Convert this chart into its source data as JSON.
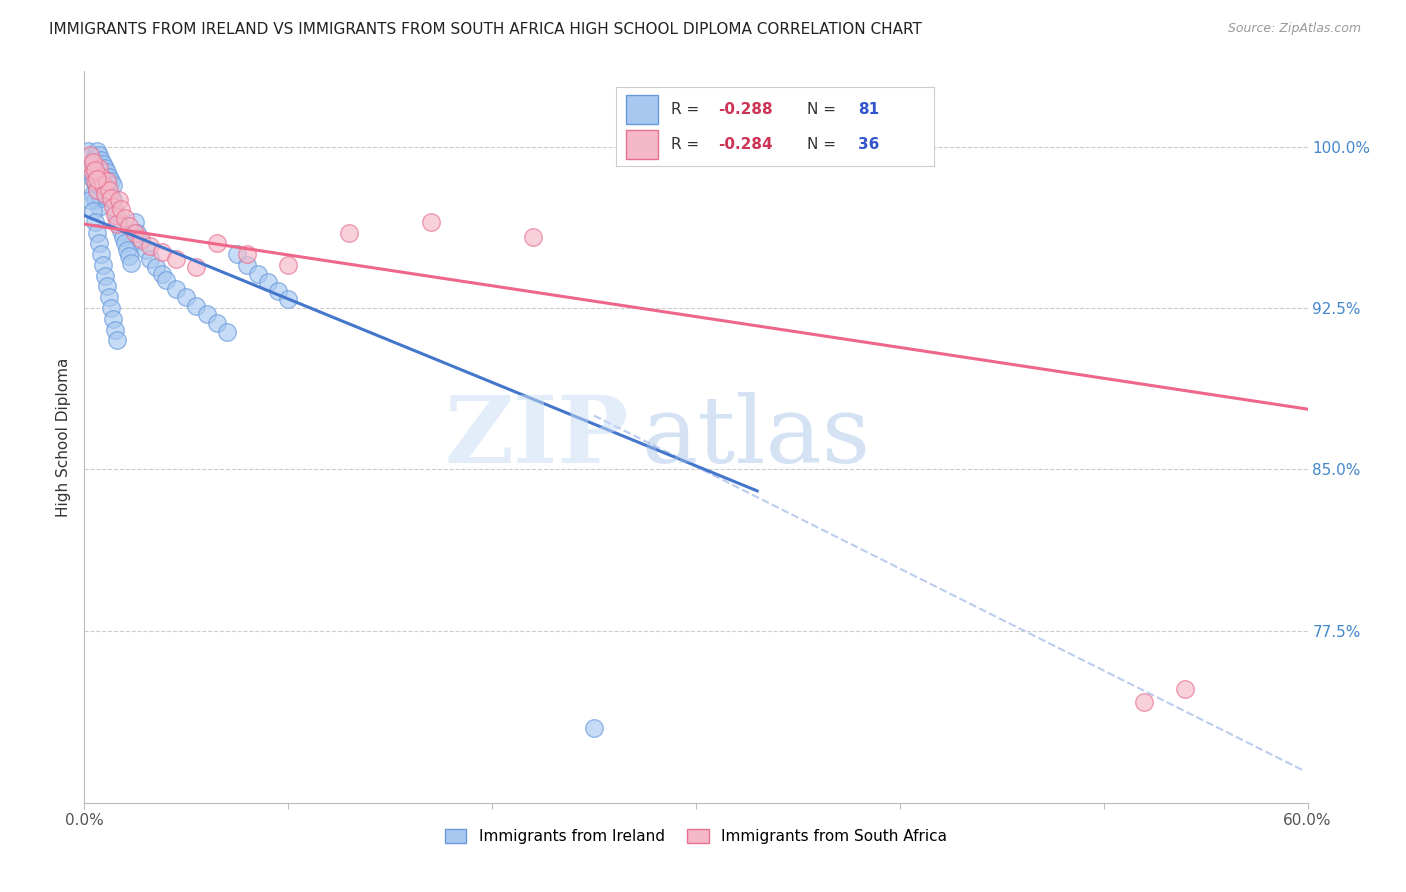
{
  "title": "IMMIGRANTS FROM IRELAND VS IMMIGRANTS FROM SOUTH AFRICA HIGH SCHOOL DIPLOMA CORRELATION CHART",
  "source": "Source: ZipAtlas.com",
  "ylabel": "High School Diploma",
  "ytick_labels": [
    "100.0%",
    "92.5%",
    "85.0%",
    "77.5%"
  ],
  "ytick_values": [
    1.0,
    0.925,
    0.85,
    0.775
  ],
  "xlim": [
    0.0,
    0.6
  ],
  "ylim": [
    0.695,
    1.035
  ],
  "watermark_zip": "ZIP",
  "watermark_atlas": "atlas",
  "blue_color": "#A8C8F0",
  "blue_edge_color": "#6699DD",
  "pink_color": "#F5B8C8",
  "pink_edge_color": "#E87090",
  "blue_line_color": "#4477CC",
  "pink_line_color": "#EE6688",
  "dashed_line_color": "#BBCCEE",
  "legend_blue_R": "-0.288",
  "legend_blue_N": "81",
  "legend_pink_R": "-0.284",
  "legend_pink_N": "36",
  "blue_scatter_x": [
    0.002,
    0.003,
    0.003,
    0.004,
    0.004,
    0.004,
    0.005,
    0.005,
    0.005,
    0.005,
    0.006,
    0.006,
    0.006,
    0.006,
    0.007,
    0.007,
    0.007,
    0.007,
    0.007,
    0.008,
    0.008,
    0.008,
    0.008,
    0.009,
    0.009,
    0.009,
    0.01,
    0.01,
    0.01,
    0.011,
    0.011,
    0.012,
    0.012,
    0.013,
    0.013,
    0.014,
    0.014,
    0.015,
    0.016,
    0.017,
    0.018,
    0.019,
    0.02,
    0.021,
    0.022,
    0.023,
    0.025,
    0.026,
    0.028,
    0.03,
    0.032,
    0.035,
    0.038,
    0.04,
    0.045,
    0.05,
    0.055,
    0.06,
    0.065,
    0.07,
    0.075,
    0.08,
    0.085,
    0.09,
    0.095,
    0.1,
    0.003,
    0.004,
    0.005,
    0.006,
    0.007,
    0.008,
    0.009,
    0.01,
    0.011,
    0.012,
    0.013,
    0.014,
    0.015,
    0.016,
    0.25
  ],
  "blue_scatter_y": [
    0.998,
    0.995,
    0.988,
    0.992,
    0.985,
    0.978,
    0.995,
    0.99,
    0.983,
    0.975,
    0.998,
    0.993,
    0.987,
    0.98,
    0.996,
    0.991,
    0.985,
    0.978,
    0.972,
    0.994,
    0.989,
    0.983,
    0.976,
    0.992,
    0.987,
    0.98,
    0.99,
    0.984,
    0.977,
    0.988,
    0.982,
    0.986,
    0.979,
    0.984,
    0.977,
    0.982,
    0.975,
    0.97,
    0.967,
    0.964,
    0.961,
    0.958,
    0.955,
    0.952,
    0.949,
    0.946,
    0.965,
    0.96,
    0.956,
    0.952,
    0.948,
    0.944,
    0.941,
    0.938,
    0.934,
    0.93,
    0.926,
    0.922,
    0.918,
    0.914,
    0.95,
    0.945,
    0.941,
    0.937,
    0.933,
    0.929,
    0.975,
    0.97,
    0.965,
    0.96,
    0.955,
    0.95,
    0.945,
    0.94,
    0.935,
    0.93,
    0.925,
    0.92,
    0.915,
    0.91,
    0.73
  ],
  "pink_scatter_x": [
    0.003,
    0.004,
    0.005,
    0.006,
    0.007,
    0.008,
    0.009,
    0.01,
    0.011,
    0.012,
    0.013,
    0.014,
    0.015,
    0.016,
    0.017,
    0.018,
    0.02,
    0.022,
    0.025,
    0.028,
    0.032,
    0.038,
    0.045,
    0.055,
    0.065,
    0.08,
    0.1,
    0.13,
    0.17,
    0.22,
    0.003,
    0.004,
    0.005,
    0.006,
    0.52,
    0.54
  ],
  "pink_scatter_y": [
    0.992,
    0.988,
    0.984,
    0.98,
    0.99,
    0.986,
    0.982,
    0.978,
    0.984,
    0.98,
    0.976,
    0.972,
    0.968,
    0.964,
    0.975,
    0.971,
    0.967,
    0.963,
    0.96,
    0.957,
    0.954,
    0.951,
    0.948,
    0.944,
    0.955,
    0.95,
    0.945,
    0.96,
    0.965,
    0.958,
    0.996,
    0.993,
    0.989,
    0.985,
    0.742,
    0.748
  ],
  "blue_line_x0": 0.0,
  "blue_line_y0": 0.968,
  "blue_line_x1": 0.33,
  "blue_line_y1": 0.84,
  "pink_line_x0": 0.0,
  "pink_line_y0": 0.964,
  "pink_line_x1": 0.6,
  "pink_line_y1": 0.878,
  "dashed_line_x0": 0.25,
  "dashed_line_y0": 0.875,
  "dashed_line_x1": 0.598,
  "dashed_line_y1": 0.71
}
